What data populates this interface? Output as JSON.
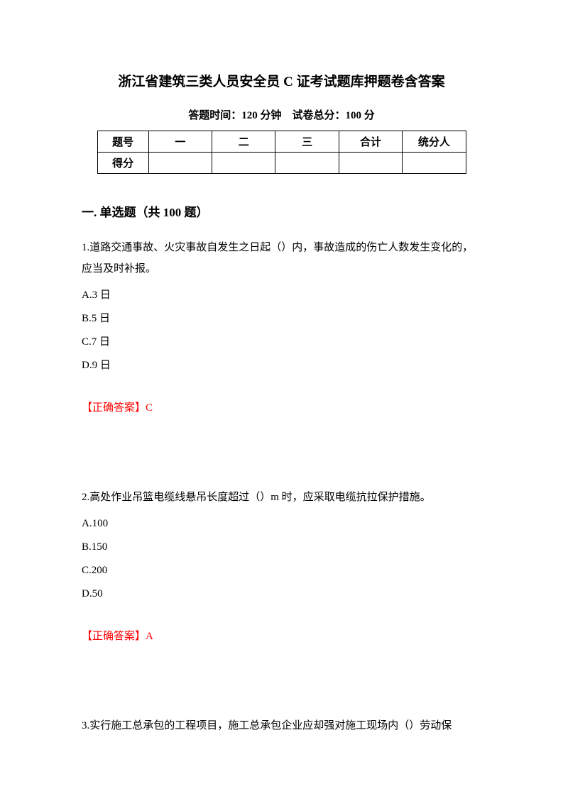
{
  "title": "浙江省建筑三类人员安全员 C 证考试题库押题卷含答案",
  "meta": {
    "time_label": "答题时间：120 分钟",
    "score_label": "试卷总分：100 分"
  },
  "table": {
    "headers": [
      "题号",
      "一",
      "二",
      "三",
      "合计",
      "统分人"
    ],
    "row2_label": "得分"
  },
  "section_heading": "一. 单选题（共 100 题）",
  "questions": [
    {
      "text": "1.道路交通事故、火灾事故自发生之日起（）内，事故造成的伤亡人数发生变化的，应当及时补报。",
      "options": [
        "A.3 日",
        "B.5 日",
        "C.7 日",
        "D.9 日"
      ],
      "answer": "【正确答案】C"
    },
    {
      "text": "2.高处作业吊篮电缆线悬吊长度超过（）m 时，应采取电缆抗拉保护措施。",
      "options": [
        "A.100",
        "B.150",
        "C.200",
        "D.50"
      ],
      "answer": "【正确答案】A"
    },
    {
      "text": "3.实行施工总承包的工程项目，施工总承包企业应却强对施工现场内（）劳动保",
      "options": [],
      "answer": ""
    }
  ]
}
